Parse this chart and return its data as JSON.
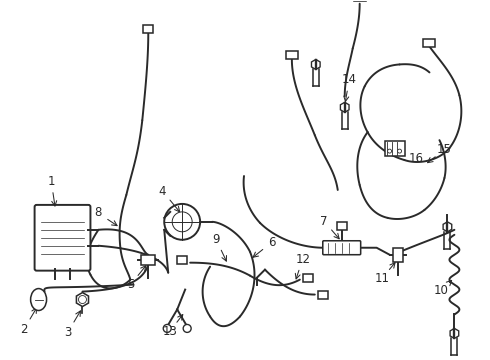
{
  "background_color": "#ffffff",
  "line_color": "#2a2a2a",
  "line_width": 1.4,
  "label_fontsize": 8.5,
  "figsize": [
    4.9,
    3.6
  ],
  "dpi": 100
}
